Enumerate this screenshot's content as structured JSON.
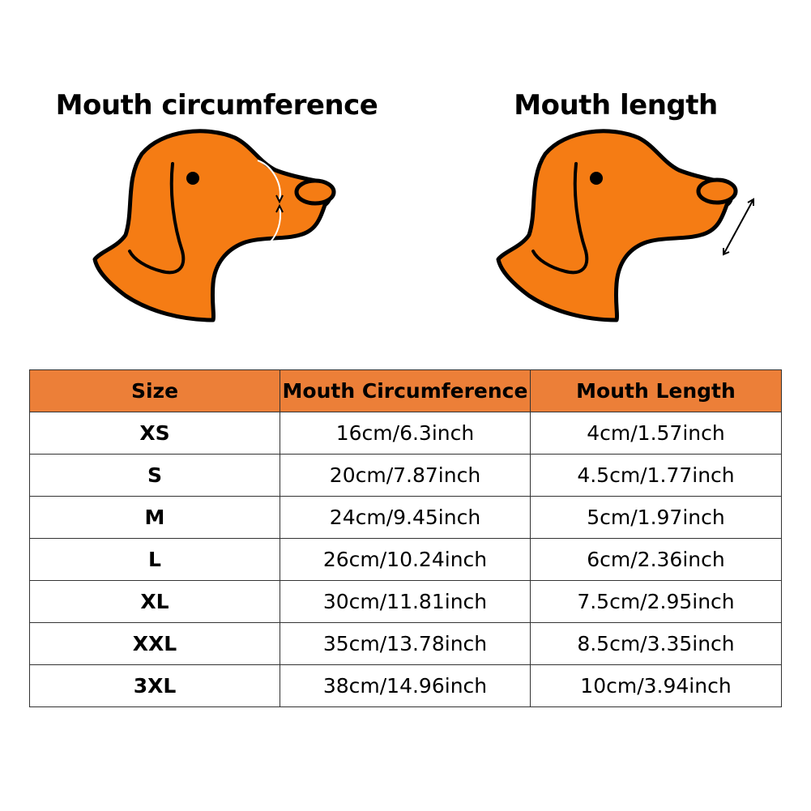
{
  "headings": {
    "left": "Mouth circumference",
    "right": "Mouth length"
  },
  "table": {
    "headers": [
      "Size",
      "Mouth Circumference",
      "Mouth Length"
    ],
    "rows": [
      [
        "XS",
        "16cm/6.3inch",
        "4cm/1.57inch"
      ],
      [
        "S",
        "20cm/7.87inch",
        "4.5cm/1.77inch"
      ],
      [
        "M",
        "24cm/9.45inch",
        "5cm/1.97inch"
      ],
      [
        "L",
        "26cm/10.24inch",
        "6cm/2.36inch"
      ],
      [
        "XL",
        "30cm/11.81inch",
        "7.5cm/2.95inch"
      ],
      [
        "XXL",
        "35cm/13.78inch",
        "8.5cm/3.35inch"
      ],
      [
        "3XL",
        "38cm/14.96inch",
        "10cm/3.94inch"
      ]
    ],
    "header_color": "#ec7f38"
  },
  "illustration": {
    "fill_color": "#f57c14",
    "outline_color": "#000000"
  }
}
